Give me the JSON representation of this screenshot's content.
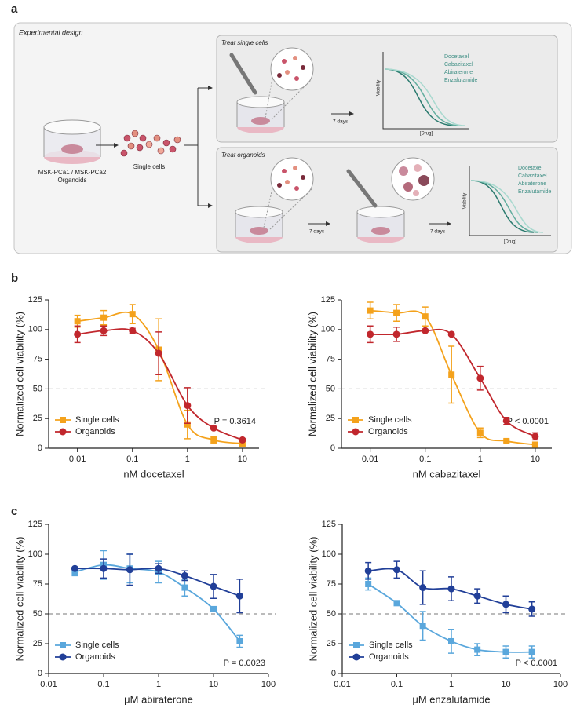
{
  "panel_labels": [
    "a",
    "b",
    "c"
  ],
  "design": {
    "title": "Experimental design",
    "source": {
      "line1": "MSK-PCa1 / MSK-PCa2",
      "line2": "Organoids"
    },
    "single_cells": "Single cells",
    "treat_single": {
      "title": "Treat single cells",
      "days": "7 days",
      "ylabel": "Viability",
      "xlabel": "[Drug]",
      "drugs": [
        "Docetaxel",
        "Cabazitaxel",
        "Abiraterone",
        "Enzalutamide"
      ]
    },
    "treat_organoids": {
      "title": "Treat organoids",
      "days": [
        "7 days",
        "7 days"
      ],
      "ylabel": "Viability",
      "xlabel": "[Drug]",
      "drugs": [
        "Docetaxel",
        "Cabazitaxel",
        "Abiraterone",
        "Enzalutamide"
      ]
    }
  },
  "chart_data": [
    {
      "type": "line",
      "xlabel": "nM docetaxel",
      "ylabel": "Normalized cell viability (%)",
      "xscale": "log",
      "x": [
        0.01,
        0.03,
        0.1,
        0.3,
        1,
        3,
        10
      ],
      "xlim": [
        0.003,
        20
      ],
      "xticks": [
        0.01,
        0.1,
        1,
        10
      ],
      "ylim": [
        0,
        125
      ],
      "yticks": [
        0,
        25,
        50,
        75,
        100,
        125
      ],
      "reference_line": 50,
      "annotation": "P = 0.3614",
      "legend": "lower left",
      "series": [
        {
          "name": "Single cells",
          "color": "#f4a21c",
          "marker": "square",
          "values": [
            107,
            110,
            113,
            83,
            20,
            7,
            4
          ],
          "errors": [
            5,
            6,
            8,
            26,
            12,
            3,
            2
          ]
        },
        {
          "name": "Organoids",
          "color": "#c1272d",
          "marker": "circle",
          "values": [
            96,
            99,
            99,
            80,
            36,
            17,
            7
          ],
          "errors": [
            7,
            4,
            2,
            18,
            15,
            1,
            1
          ]
        }
      ]
    },
    {
      "type": "line",
      "xlabel": "nM cabazitaxel",
      "ylabel": "Normalized cell viability (%)",
      "xscale": "log",
      "x": [
        0.01,
        0.03,
        0.1,
        0.3,
        1,
        3,
        10
      ],
      "xlim": [
        0.003,
        20
      ],
      "xticks": [
        0.01,
        0.1,
        1,
        10
      ],
      "ylim": [
        0,
        125
      ],
      "yticks": [
        0,
        25,
        50,
        75,
        100,
        125
      ],
      "reference_line": 50,
      "annotation": "P < 0.0001",
      "legend": "lower left",
      "series": [
        {
          "name": "Single cells",
          "color": "#f4a21c",
          "marker": "square",
          "values": [
            116,
            114,
            111,
            62,
            13,
            6,
            3
          ],
          "errors": [
            7,
            7,
            8,
            24,
            4,
            1,
            1
          ]
        },
        {
          "name": "Organoids",
          "color": "#c1272d",
          "marker": "circle",
          "values": [
            96,
            96,
            99,
            96,
            59,
            23,
            10
          ],
          "errors": [
            7,
            6,
            1,
            1,
            10,
            3,
            3
          ]
        }
      ]
    },
    {
      "type": "line",
      "xlabel": "μM abiraterone",
      "ylabel": "Normalized cell viability (%)",
      "xscale": "log",
      "x": [
        0.03,
        0.1,
        0.3,
        1,
        3,
        10,
        30
      ],
      "xlim": [
        0.01,
        100
      ],
      "xticks": [
        0.01,
        0.1,
        1,
        10,
        100
      ],
      "ylim": [
        0,
        125
      ],
      "yticks": [
        0,
        25,
        50,
        75,
        100,
        125
      ],
      "reference_line": 50,
      "annotation": "P = 0.0023",
      "legend": "lower left",
      "series": [
        {
          "name": "Single cells",
          "color": "#5aa7dc",
          "marker": "square",
          "values": [
            85,
            91,
            88,
            85,
            72,
            54,
            27
          ],
          "errors": [
            3,
            12,
            12,
            9,
            7,
            1,
            5
          ]
        },
        {
          "name": "Organoids",
          "color": "#213f98",
          "marker": "circle",
          "values": [
            88,
            88,
            87,
            88,
            82,
            73,
            65
          ],
          "errors": [
            1,
            8,
            13,
            4,
            4,
            10,
            14
          ]
        }
      ]
    },
    {
      "type": "line",
      "xlabel": "μM enzalutamide",
      "ylabel": "Normalized cell viability (%)",
      "xscale": "log",
      "x": [
        0.03,
        0.1,
        0.3,
        1,
        3,
        10,
        30
      ],
      "xlim": [
        0.01,
        100
      ],
      "xticks": [
        0.01,
        0.1,
        1,
        10,
        100
      ],
      "ylim": [
        0,
        125
      ],
      "yticks": [
        0,
        25,
        50,
        75,
        100,
        125
      ],
      "reference_line": 50,
      "annotation": "P < 0.0001",
      "legend": "lower left",
      "series": [
        {
          "name": "Single cells",
          "color": "#5aa7dc",
          "marker": "square",
          "values": [
            75,
            59,
            40,
            27,
            20,
            18,
            18
          ],
          "errors": [
            5,
            1,
            12,
            10,
            5,
            5,
            5
          ]
        },
        {
          "name": "Organoids",
          "color": "#213f98",
          "marker": "circle",
          "values": [
            86,
            87,
            72,
            71,
            65,
            58,
            54
          ],
          "errors": [
            7,
            7,
            14,
            10,
            6,
            7,
            6
          ]
        }
      ]
    }
  ]
}
